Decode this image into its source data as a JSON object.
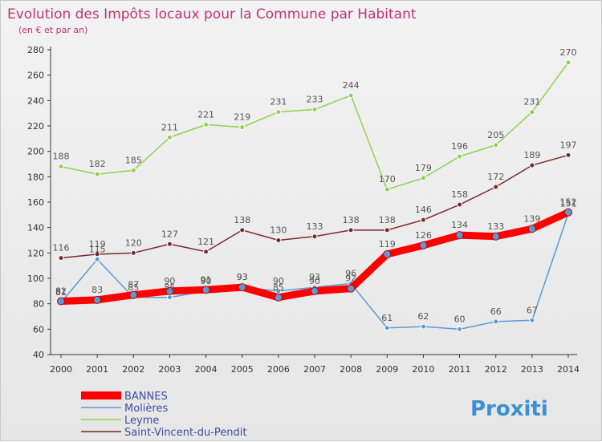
{
  "chart_data": {
    "type": "line",
    "title": "Evolution des Impôts locaux pour la Commune par Habitant",
    "subtitle": "(en € et par an)",
    "x": [
      2000,
      2001,
      2002,
      2003,
      2004,
      2005,
      2006,
      2007,
      2008,
      2009,
      2010,
      2011,
      2012,
      2013,
      2014
    ],
    "ylim": [
      40,
      280
    ],
    "yticks": [
      40,
      60,
      80,
      100,
      120,
      140,
      160,
      180,
      200,
      220,
      240,
      260,
      280
    ],
    "grid": false,
    "legend_position": "bottom-left",
    "series": [
      {
        "name": "Leyme",
        "color": "#8fd14f",
        "values": [
          188,
          182,
          185,
          211,
          221,
          219,
          231,
          233,
          244,
          170,
          179,
          196,
          205,
          231,
          270
        ]
      },
      {
        "name": "Saint-Vincent-du-Pendit",
        "color": "#7a2a2a",
        "values": [
          116,
          119,
          120,
          127,
          121,
          138,
          130,
          133,
          138,
          138,
          146,
          158,
          172,
          189,
          197
        ]
      },
      {
        "name": "Molières",
        "color": "#5b9bd5",
        "values": [
          81,
          115,
          85,
          85,
          90,
          93,
          90,
          93,
          96,
          61,
          62,
          60,
          66,
          67,
          151
        ]
      },
      {
        "name": "BANNES",
        "color": "#ff0000",
        "values": [
          82,
          83,
          87,
          90,
          91,
          93,
          85,
          90,
          92,
          119,
          126,
          134,
          133,
          139,
          152
        ]
      }
    ]
  },
  "brand": {
    "logo_text": "Proxiti"
  }
}
